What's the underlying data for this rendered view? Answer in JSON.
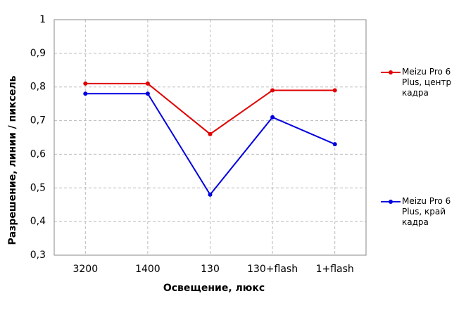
{
  "chart_data": {
    "type": "line",
    "x_label": "Освещение,  люкс",
    "y_label": "Разрешение,  линии / пиксель",
    "categories": [
      "3200",
      "1400",
      "130",
      "130+flash",
      "1+flash"
    ],
    "series": [
      {
        "name": "Meizu Pro 6 Plus, центр кадра",
        "color": "#e00000",
        "values": [
          0.81,
          0.81,
          0.66,
          0.79,
          0.79
        ]
      },
      {
        "name": "Meizu Pro 6 Plus, край кадра",
        "color": "#0000e0",
        "values": [
          0.78,
          0.78,
          0.48,
          0.71,
          0.63
        ]
      }
    ],
    "ylim": [
      0.3,
      1
    ],
    "yticks": [
      {
        "value": 0.3,
        "label": "0,3"
      },
      {
        "value": 0.4,
        "label": "0,4"
      },
      {
        "value": 0.5,
        "label": "0,5"
      },
      {
        "value": 0.6,
        "label": "0,6"
      },
      {
        "value": 0.7,
        "label": "0,7"
      },
      {
        "value": 0.8,
        "label": "0,8"
      },
      {
        "value": 0.9,
        "label": "0,9"
      },
      1
    ],
    "grid": true,
    "legend": "right"
  }
}
